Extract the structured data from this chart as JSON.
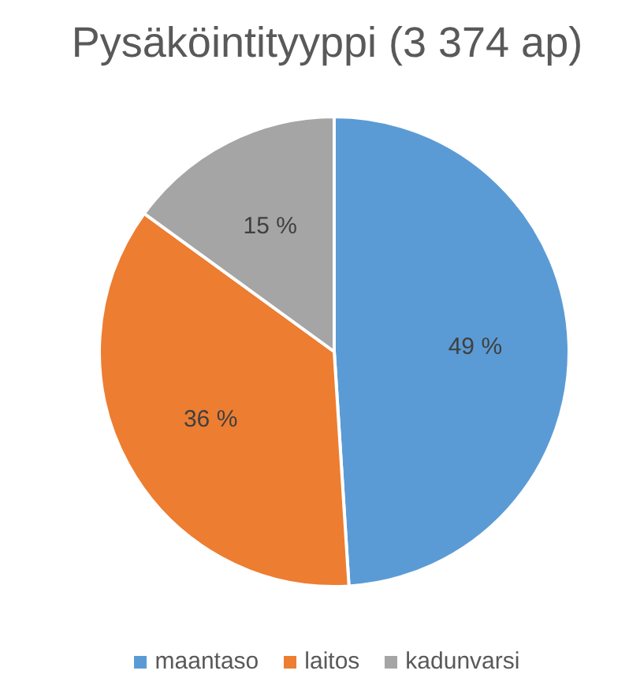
{
  "chart_data": {
    "type": "pie",
    "title": "Pysäköintityyppi (3 374 ap)",
    "categories": [
      "maantaso",
      "laitos",
      "kadunvarsi"
    ],
    "values": [
      49,
      36,
      15
    ],
    "colors": [
      "#5b9bd5",
      "#ed7d31",
      "#a5a5a5"
    ],
    "value_labels": [
      "49 %",
      "36 %",
      "15 %"
    ],
    "legend": "bottom"
  }
}
